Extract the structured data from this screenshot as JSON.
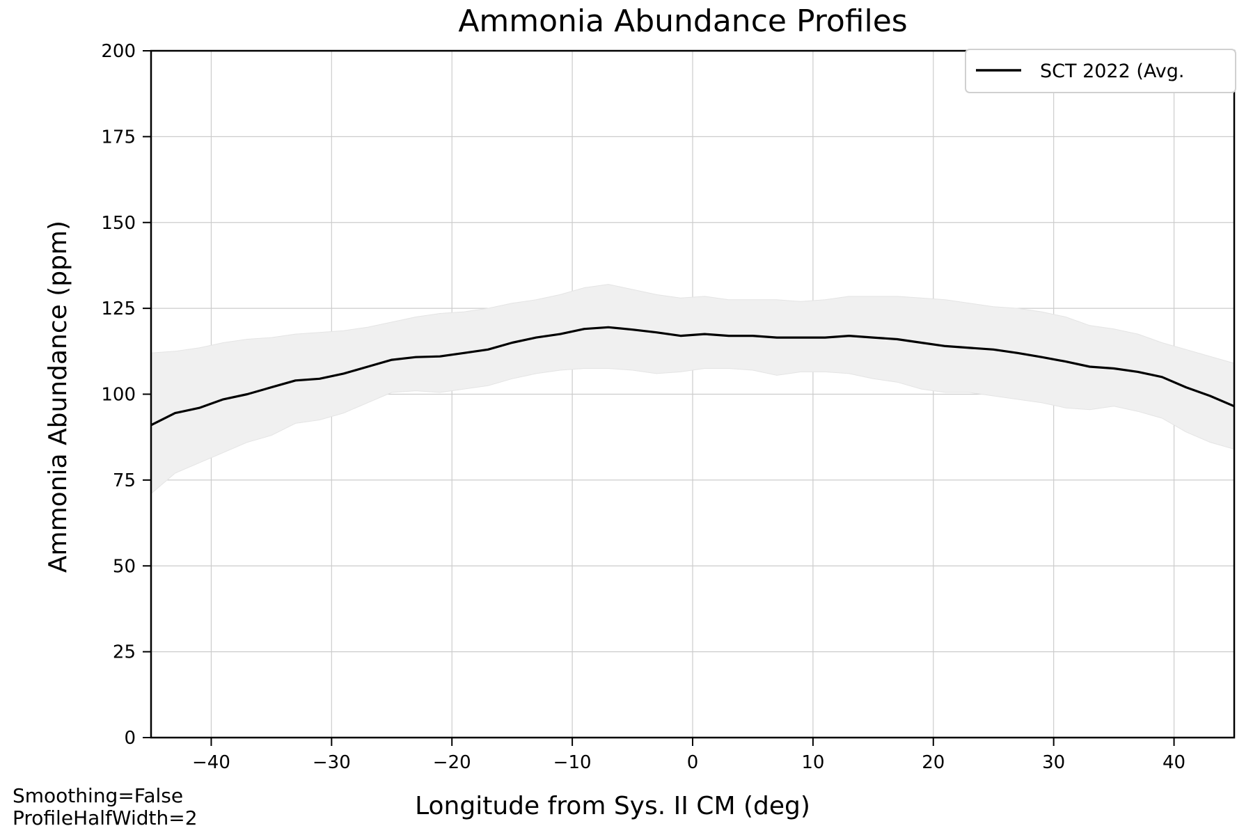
{
  "chart_data": {
    "type": "line",
    "title": "Ammonia Abundance Profiles",
    "xlabel": "Longitude from Sys. II CM (deg)",
    "ylabel": "Ammonia Abundance (ppm)",
    "xlim": [
      -45,
      45
    ],
    "ylim": [
      0,
      200
    ],
    "xticks": [
      -40,
      -30,
      -20,
      -10,
      0,
      10,
      20,
      30,
      40
    ],
    "xtick_labels": [
      "−40",
      "−30",
      "−20",
      "−10",
      "0",
      "10",
      "20",
      "30",
      "40"
    ],
    "yticks": [
      0,
      25,
      50,
      75,
      100,
      125,
      150,
      175,
      200
    ],
    "ytick_labels": [
      "0",
      "25",
      "50",
      "75",
      "100",
      "125",
      "150",
      "175",
      "200"
    ],
    "grid": true,
    "legend_position": "top-right",
    "series": [
      {
        "name": "SCT 2022 (Avg.",
        "color": "#000000",
        "band_color": "#f0f0f0",
        "x": [
          -45,
          -43,
          -41,
          -39,
          -37,
          -35,
          -33,
          -31,
          -29,
          -27,
          -25,
          -23,
          -21,
          -19,
          -17,
          -15,
          -13,
          -11,
          -9,
          -7,
          -5,
          -3,
          -1,
          1,
          3,
          5,
          7,
          9,
          11,
          13,
          15,
          17,
          19,
          21,
          23,
          25,
          27,
          29,
          31,
          33,
          35,
          37,
          39,
          41,
          43,
          45
        ],
        "y": [
          91,
          94.5,
          96,
          98.5,
          100,
          102,
          104,
          104.5,
          106,
          108,
          110,
          110.8,
          111,
          112,
          113,
          115,
          116.5,
          117.5,
          119,
          119.5,
          118.8,
          118,
          117,
          117.5,
          117,
          117,
          116.5,
          116.5,
          116.5,
          117,
          116.5,
          116,
          115,
          114,
          113.5,
          113,
          112,
          110.8,
          109.5,
          108,
          107.5,
          106.5,
          105,
          102,
          99.5,
          96.5
        ],
        "y_lower": [
          71,
          77,
          80,
          83,
          86,
          88,
          91.5,
          92.5,
          94.5,
          97.5,
          100.5,
          101,
          100.5,
          101.5,
          102.5,
          104.5,
          106,
          107,
          107.5,
          107.5,
          107,
          106,
          106.5,
          107.5,
          107.5,
          107,
          105.5,
          106.5,
          106.5,
          106,
          104.5,
          103.5,
          101.5,
          100.5,
          100.5,
          99.5,
          98.5,
          97.5,
          96,
          95.5,
          96.5,
          95,
          93,
          89,
          86,
          84
        ],
        "y_upper": [
          112,
          112.5,
          113.5,
          115,
          116,
          116.5,
          117.5,
          118,
          118.5,
          119.5,
          121,
          122.5,
          123.5,
          124,
          125,
          126.5,
          127.5,
          129,
          131,
          132,
          130.5,
          129,
          128,
          128.5,
          127.5,
          127.5,
          127.5,
          127,
          127.5,
          128.5,
          128.5,
          128.5,
          128,
          127.5,
          126.5,
          125.5,
          125,
          124,
          122.5,
          120,
          119,
          117.5,
          115,
          113,
          111,
          109
        ]
      }
    ]
  },
  "notes": {
    "line1": "Smoothing=False",
    "line2": "ProfileHalfWidth=2"
  }
}
